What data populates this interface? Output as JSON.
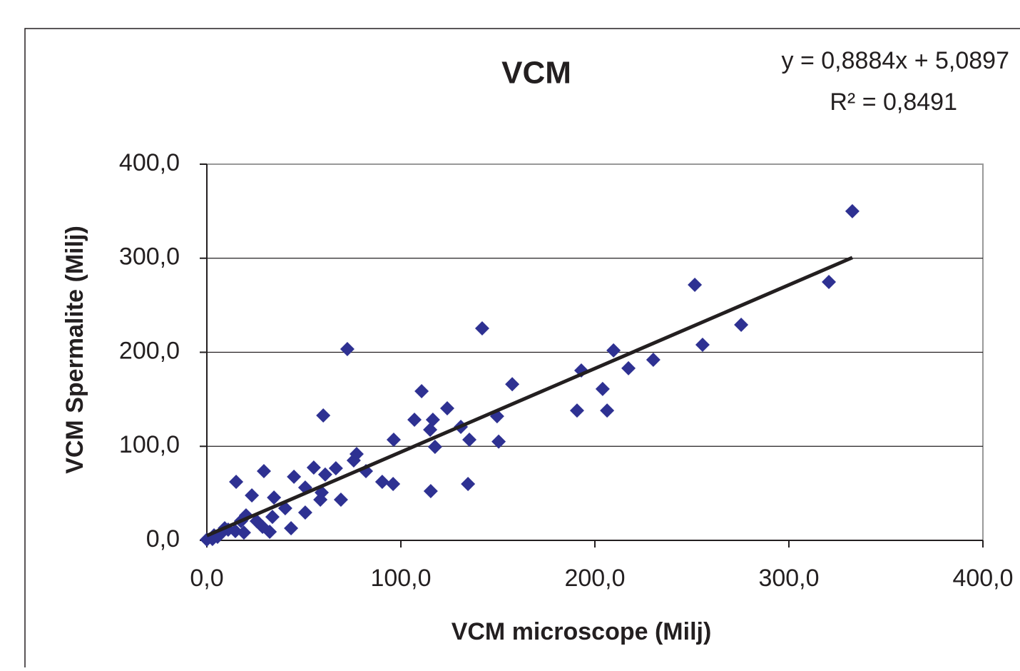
{
  "chart_data": {
    "type": "scatter",
    "title": "VCM",
    "x_label": "VCM microscope (Milj)",
    "y_label": "VCM Spermalite (Milj)",
    "color": "#2e3192",
    "x": [
      332.7,
      251.5,
      320.6,
      275.4,
      255.5,
      230.1,
      217.3,
      209.6,
      193.0,
      204.0,
      206.3,
      190.8,
      157.4,
      149.6,
      150.4,
      141.9,
      135.3,
      134.6,
      130.9,
      123.9,
      116.5,
      115.1,
      117.6,
      115.4,
      110.7,
      107.0,
      96.3,
      96.0,
      90.4,
      82.0,
      77.2,
      75.7,
      72.4,
      69.1,
      66.5,
      61.0,
      60.0,
      59.2,
      58.5,
      55.1,
      50.7,
      50.7,
      44.9,
      43.4,
      40.4,
      34.6,
      33.8,
      29.4,
      32.4,
      28.7,
      25.7,
      23.2,
      20.2,
      19.1,
      17.6,
      15.1,
      14.7,
      11.0,
      8.1,
      5.5,
      2.9,
      0.0,
      3.7,
      9.2
    ],
    "values": [
      350.0,
      271.7,
      274.8,
      229.2,
      208.0,
      192.0,
      183.0,
      202.0,
      180.6,
      161.0,
      138.0,
      138.0,
      166.0,
      132.0,
      105.0,
      225.4,
      107.0,
      60.0,
      120.7,
      140.4,
      128.3,
      117.6,
      99.4,
      52.4,
      158.6,
      128.3,
      107.0,
      60.0,
      62.2,
      73.6,
      91.8,
      85.0,
      203.4,
      43.3,
      76.7,
      70.0,
      132.8,
      50.9,
      43.3,
      77.4,
      56.2,
      29.6,
      67.6,
      12.9,
      34.2,
      45.5,
      25.0,
      73.6,
      9.1,
      14.4,
      20.5,
      47.8,
      26.6,
      8.3,
      20.5,
      62.2,
      9.9,
      11.4,
      9.1,
      3.8,
      1.5,
      0.8,
      5.3,
      12.9
    ],
    "trendline": {
      "equation": "y = 0,8884x + 5,0897",
      "r_squared_label": "R² = 0,8491",
      "slope": 0.8884,
      "intercept": 5.0897,
      "color": "#231f20"
    },
    "xlim": [
      0,
      400
    ],
    "ylim": [
      0,
      400
    ],
    "xticks": [
      {
        "value": 0,
        "label": "0,0"
      },
      {
        "value": 100,
        "label": "100,0"
      },
      {
        "value": 200,
        "label": "200,0"
      },
      {
        "value": 300,
        "label": "300,0"
      },
      {
        "value": 400,
        "label": "400,0"
      }
    ],
    "yticks": [
      {
        "value": 0,
        "label": "0,0"
      },
      {
        "value": 100,
        "label": "100,0"
      },
      {
        "value": 200,
        "label": "200,0"
      },
      {
        "value": 300,
        "label": "300,0"
      },
      {
        "value": 400,
        "label": "400,0"
      }
    ],
    "grid": true
  }
}
